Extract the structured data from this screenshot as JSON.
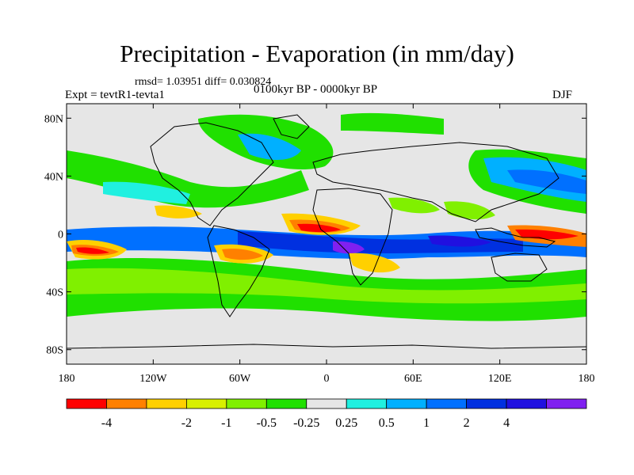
{
  "title": "Precipitation - Evaporation (in mm/day)",
  "stats_text": "rmsd= 1.03951 diff= 0.030824",
  "experiment_text": "Expt = tevtR1-tevta1",
  "period_text": "0100kyr BP - 0000kyr BP",
  "season_text": "DJF",
  "lat_ticks": [
    {
      "lat": 80,
      "label": "80N"
    },
    {
      "lat": 40,
      "label": "40N"
    },
    {
      "lat": 0,
      "label": "0"
    },
    {
      "lat": -40,
      "label": "40S"
    },
    {
      "lat": -80,
      "label": "80S"
    }
  ],
  "lon_ticks": [
    {
      "lon": -180,
      "label": "180"
    },
    {
      "lon": -120,
      "label": "120W"
    },
    {
      "lon": -60,
      "label": "60W"
    },
    {
      "lon": 0,
      "label": "0"
    },
    {
      "lon": 60,
      "label": "60E"
    },
    {
      "lon": 120,
      "label": "120E"
    },
    {
      "lon": 180,
      "label": "180"
    }
  ],
  "colorbar": {
    "colors": [
      "#ff0000",
      "#ff8000",
      "#ffd000",
      "#d8f000",
      "#80f000",
      "#20e000",
      "#e6e6e6",
      "#20f0e0",
      "#00b0ff",
      "#0070ff",
      "#0030e0",
      "#2010e0",
      "#8020f0"
    ],
    "labels": [
      "-4",
      "-2",
      "-1",
      "-0.5",
      "-0.25",
      "0.25",
      "0.5",
      "1",
      "2",
      "4"
    ],
    "label_after_box": [
      1,
      3,
      4,
      5,
      6,
      7,
      8,
      9,
      10,
      11
    ]
  },
  "map_extent": {
    "lon": [
      -180,
      180
    ],
    "lat": [
      -90,
      90
    ]
  },
  "background_color": "#e6e6e6"
}
